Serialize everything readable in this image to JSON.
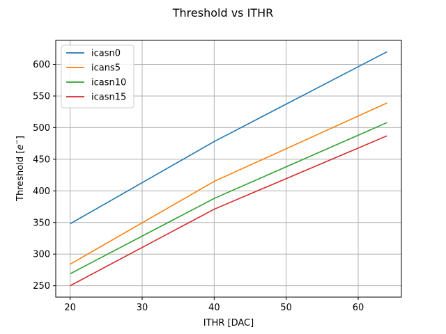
{
  "chart_data": {
    "type": "line",
    "title": "Threshold vs ITHR",
    "xlabel": "ITHR [DAC]",
    "ylabel_main": "Threshold [",
    "ylabel_unit": "e",
    "ylabel_sup": "−",
    "ylabel_close": "]",
    "xlim": [
      18,
      66
    ],
    "ylim": [
      232,
      638
    ],
    "x_ticks": [
      20,
      30,
      40,
      50,
      60
    ],
    "y_ticks": [
      250,
      300,
      350,
      400,
      450,
      500,
      550,
      600
    ],
    "grid": true,
    "legend_position": "top-left",
    "x": [
      20,
      40,
      64
    ],
    "series": [
      {
        "name": "icasn0",
        "color": "#1f77b4",
        "values": [
          348,
          478,
          620
        ]
      },
      {
        "name": "icans5",
        "color": "#ff7f0e",
        "values": [
          284,
          415,
          539
        ]
      },
      {
        "name": "icasn10",
        "color": "#2ca02c",
        "values": [
          269,
          388,
          508
        ]
      },
      {
        "name": "icasn15",
        "color": "#d62728",
        "values": [
          250,
          371,
          487
        ]
      }
    ]
  }
}
